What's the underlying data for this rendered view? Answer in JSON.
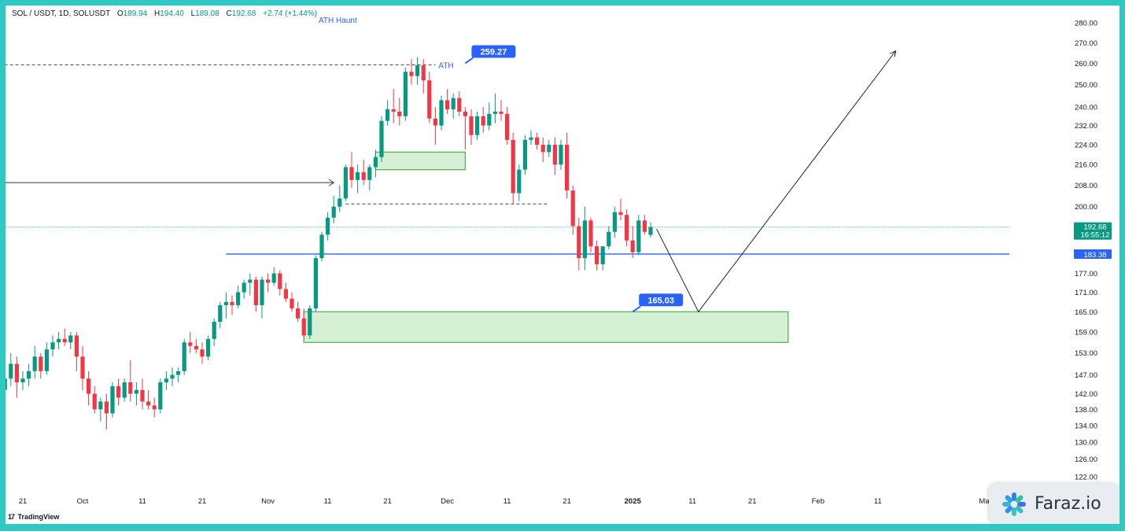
{
  "header": {
    "symbol": "SOL / USDT, 1D, SOLUSDT",
    "open_label": "O",
    "open": "189.94",
    "high_label": "H",
    "high": "194.40",
    "low_label": "L",
    "low": "189.08",
    "close_label": "C",
    "close": "192.68",
    "change": "+2.74 (+1.44%)"
  },
  "annotations": {
    "ath_haunt": "ATH Haunt",
    "ath": "ATH",
    "callout_high": "259.27",
    "callout_low": "165.03"
  },
  "price_tags": {
    "current": "192.68",
    "countdown": "16:55:12",
    "level": "183.38"
  },
  "branding": {
    "tradingview": "TradingView",
    "watermark": "Faraz.io"
  },
  "colors": {
    "up": "#089981",
    "down": "#f23645",
    "level_line": "#2962ff",
    "zone_fill": "#d6f0d6",
    "zone_border": "#4caf50",
    "callout": "#2962ff",
    "border": "#2fc9c4"
  },
  "chart_data": {
    "type": "candlestick",
    "symbol": "SOL / USDT",
    "interval": "1D",
    "y_scale": "log",
    "ylim": [
      119,
      288
    ],
    "y_ticks": [
      280,
      270,
      260,
      250,
      240,
      232,
      224,
      216,
      208,
      200,
      177,
      171,
      165,
      159,
      153,
      147,
      142,
      138,
      134,
      130,
      126,
      122
    ],
    "y_tick_labels": [
      "280.00",
      "270.00",
      "260.00",
      "250.00",
      "240.00",
      "232.00",
      "224.00",
      "216.00",
      "208.00",
      "200.00",
      "177.00",
      "171.00",
      "165.00",
      "159.00",
      "153.00",
      "147.00",
      "142.00",
      "138.00",
      "134.00",
      "130.00",
      "126.00",
      "122.00"
    ],
    "x_axis": {
      "start_date": "2024-09-17",
      "end_date": "2025-03-05",
      "ticks": [
        {
          "date": "2024-09-21",
          "label": "21"
        },
        {
          "date": "2024-10-01",
          "label": "Oct"
        },
        {
          "date": "2024-10-11",
          "label": "11"
        },
        {
          "date": "2024-10-21",
          "label": "21"
        },
        {
          "date": "2024-11-01",
          "label": "Nov"
        },
        {
          "date": "2024-11-11",
          "label": "11"
        },
        {
          "date": "2024-11-21",
          "label": "21"
        },
        {
          "date": "2024-12-01",
          "label": "Dec"
        },
        {
          "date": "2024-12-11",
          "label": "11"
        },
        {
          "date": "2024-12-21",
          "label": "21"
        },
        {
          "date": "2025-01-01",
          "label": "2025"
        },
        {
          "date": "2025-01-11",
          "label": "11"
        },
        {
          "date": "2025-01-21",
          "label": "21"
        },
        {
          "date": "2025-02-01",
          "label": "Feb"
        },
        {
          "date": "2025-02-11",
          "label": "11"
        },
        {
          "date": "2025-03-01",
          "label": "Mar"
        }
      ]
    },
    "candles": [
      {
        "date": "2024-09-17",
        "o": 131,
        "h": 144,
        "l": 128,
        "c": 143
      },
      {
        "date": "2024-09-18",
        "o": 143,
        "h": 148,
        "l": 140,
        "c": 146
      },
      {
        "date": "2024-09-19",
        "o": 146,
        "h": 153,
        "l": 144,
        "c": 150
      },
      {
        "date": "2024-09-20",
        "o": 150,
        "h": 152,
        "l": 141,
        "c": 145
      },
      {
        "date": "2024-09-21",
        "o": 145,
        "h": 148,
        "l": 143,
        "c": 146
      },
      {
        "date": "2024-09-22",
        "o": 146,
        "h": 150,
        "l": 144,
        "c": 148
      },
      {
        "date": "2024-09-23",
        "o": 148,
        "h": 155,
        "l": 146,
        "c": 152
      },
      {
        "date": "2024-09-24",
        "o": 152,
        "h": 153,
        "l": 146,
        "c": 148
      },
      {
        "date": "2024-09-25",
        "o": 148,
        "h": 156,
        "l": 147,
        "c": 154
      },
      {
        "date": "2024-09-26",
        "o": 154,
        "h": 158,
        "l": 152,
        "c": 156
      },
      {
        "date": "2024-09-27",
        "o": 156,
        "h": 159,
        "l": 154,
        "c": 157
      },
      {
        "date": "2024-09-28",
        "o": 157,
        "h": 160,
        "l": 155,
        "c": 156
      },
      {
        "date": "2024-09-29",
        "o": 156,
        "h": 159,
        "l": 154,
        "c": 158
      },
      {
        "date": "2024-09-30",
        "o": 158,
        "h": 159,
        "l": 148,
        "c": 152
      },
      {
        "date": "2024-10-01",
        "o": 152,
        "h": 155,
        "l": 143,
        "c": 146
      },
      {
        "date": "2024-10-02",
        "o": 146,
        "h": 148,
        "l": 139,
        "c": 142
      },
      {
        "date": "2024-10-03",
        "o": 142,
        "h": 144,
        "l": 137,
        "c": 138
      },
      {
        "date": "2024-10-04",
        "o": 138,
        "h": 141,
        "l": 135,
        "c": 140
      },
      {
        "date": "2024-10-05",
        "o": 140,
        "h": 142,
        "l": 133,
        "c": 137
      },
      {
        "date": "2024-10-06",
        "o": 137,
        "h": 145,
        "l": 136,
        "c": 144
      },
      {
        "date": "2024-10-07",
        "o": 144,
        "h": 146,
        "l": 139,
        "c": 141
      },
      {
        "date": "2024-10-08",
        "o": 141,
        "h": 146,
        "l": 140,
        "c": 145
      },
      {
        "date": "2024-10-09",
        "o": 145,
        "h": 151,
        "l": 140,
        "c": 142
      },
      {
        "date": "2024-10-10",
        "o": 142,
        "h": 145,
        "l": 139,
        "c": 143
      },
      {
        "date": "2024-10-11",
        "o": 143,
        "h": 146,
        "l": 138,
        "c": 140
      },
      {
        "date": "2024-10-12",
        "o": 140,
        "h": 143,
        "l": 138,
        "c": 139
      },
      {
        "date": "2024-10-13",
        "o": 139,
        "h": 141,
        "l": 136,
        "c": 138
      },
      {
        "date": "2024-10-14",
        "o": 138,
        "h": 146,
        "l": 137,
        "c": 145
      },
      {
        "date": "2024-10-15",
        "o": 145,
        "h": 148,
        "l": 143,
        "c": 146
      },
      {
        "date": "2024-10-16",
        "o": 146,
        "h": 149,
        "l": 144,
        "c": 147
      },
      {
        "date": "2024-10-17",
        "o": 147,
        "h": 149,
        "l": 145,
        "c": 148
      },
      {
        "date": "2024-10-18",
        "o": 148,
        "h": 157,
        "l": 147,
        "c": 156
      },
      {
        "date": "2024-10-19",
        "o": 156,
        "h": 159,
        "l": 153,
        "c": 155
      },
      {
        "date": "2024-10-20",
        "o": 155,
        "h": 157,
        "l": 153,
        "c": 154
      },
      {
        "date": "2024-10-21",
        "o": 154,
        "h": 156,
        "l": 150,
        "c": 152
      },
      {
        "date": "2024-10-22",
        "o": 152,
        "h": 158,
        "l": 151,
        "c": 157
      },
      {
        "date": "2024-10-23",
        "o": 157,
        "h": 163,
        "l": 155,
        "c": 162
      },
      {
        "date": "2024-10-24",
        "o": 162,
        "h": 168,
        "l": 160,
        "c": 167
      },
      {
        "date": "2024-10-25",
        "o": 167,
        "h": 171,
        "l": 163,
        "c": 168
      },
      {
        "date": "2024-10-26",
        "o": 168,
        "h": 170,
        "l": 164,
        "c": 167
      },
      {
        "date": "2024-10-27",
        "o": 167,
        "h": 173,
        "l": 166,
        "c": 171
      },
      {
        "date": "2024-10-28",
        "o": 171,
        "h": 175,
        "l": 169,
        "c": 174
      },
      {
        "date": "2024-10-29",
        "o": 174,
        "h": 177,
        "l": 170,
        "c": 175
      },
      {
        "date": "2024-10-30",
        "o": 175,
        "h": 176,
        "l": 165,
        "c": 167
      },
      {
        "date": "2024-10-31",
        "o": 167,
        "h": 176,
        "l": 163,
        "c": 175
      },
      {
        "date": "2024-11-01",
        "o": 175,
        "h": 177,
        "l": 171,
        "c": 174
      },
      {
        "date": "2024-11-02",
        "o": 174,
        "h": 179,
        "l": 173,
        "c": 177
      },
      {
        "date": "2024-11-03",
        "o": 177,
        "h": 178,
        "l": 170,
        "c": 172
      },
      {
        "date": "2024-11-04",
        "o": 172,
        "h": 174,
        "l": 168,
        "c": 169
      },
      {
        "date": "2024-11-05",
        "o": 169,
        "h": 171,
        "l": 165,
        "c": 166
      },
      {
        "date": "2024-11-06",
        "o": 166,
        "h": 168,
        "l": 162,
        "c": 163
      },
      {
        "date": "2024-11-07",
        "o": 163,
        "h": 166,
        "l": 157,
        "c": 158
      },
      {
        "date": "2024-11-08",
        "o": 158,
        "h": 167,
        "l": 157,
        "c": 166
      },
      {
        "date": "2024-11-09",
        "o": 166,
        "h": 183,
        "l": 165,
        "c": 182
      },
      {
        "date": "2024-11-10",
        "o": 182,
        "h": 191,
        "l": 181,
        "c": 190
      },
      {
        "date": "2024-11-11",
        "o": 190,
        "h": 198,
        "l": 188,
        "c": 196
      },
      {
        "date": "2024-11-12",
        "o": 196,
        "h": 204,
        "l": 194,
        "c": 200
      },
      {
        "date": "2024-11-13",
        "o": 200,
        "h": 208,
        "l": 198,
        "c": 203
      },
      {
        "date": "2024-11-14",
        "o": 203,
        "h": 216,
        "l": 202,
        "c": 215
      },
      {
        "date": "2024-11-15",
        "o": 215,
        "h": 221,
        "l": 207,
        "c": 210
      },
      {
        "date": "2024-11-16",
        "o": 210,
        "h": 216,
        "l": 205,
        "c": 213
      },
      {
        "date": "2024-11-17",
        "o": 213,
        "h": 218,
        "l": 208,
        "c": 210
      },
      {
        "date": "2024-11-18",
        "o": 210,
        "h": 216,
        "l": 206,
        "c": 215
      },
      {
        "date": "2024-11-19",
        "o": 215,
        "h": 222,
        "l": 211,
        "c": 219
      },
      {
        "date": "2024-11-20",
        "o": 219,
        "h": 236,
        "l": 217,
        "c": 234
      },
      {
        "date": "2024-11-21",
        "o": 234,
        "h": 243,
        "l": 232,
        "c": 239
      },
      {
        "date": "2024-11-22",
        "o": 239,
        "h": 248,
        "l": 233,
        "c": 238
      },
      {
        "date": "2024-11-23",
        "o": 238,
        "h": 244,
        "l": 232,
        "c": 236
      },
      {
        "date": "2024-11-24",
        "o": 236,
        "h": 258,
        "l": 234,
        "c": 256
      },
      {
        "date": "2024-11-25",
        "o": 256,
        "h": 262,
        "l": 250,
        "c": 254
      },
      {
        "date": "2024-11-26",
        "o": 254,
        "h": 263,
        "l": 250,
        "c": 259
      },
      {
        "date": "2024-11-27",
        "o": 259,
        "h": 262,
        "l": 246,
        "c": 252
      },
      {
        "date": "2024-11-28",
        "o": 252,
        "h": 256,
        "l": 233,
        "c": 235
      },
      {
        "date": "2024-11-29",
        "o": 235,
        "h": 240,
        "l": 224,
        "c": 232
      },
      {
        "date": "2024-11-30",
        "o": 232,
        "h": 245,
        "l": 230,
        "c": 243
      },
      {
        "date": "2024-12-01",
        "o": 243,
        "h": 248,
        "l": 237,
        "c": 239
      },
      {
        "date": "2024-12-02",
        "o": 239,
        "h": 246,
        "l": 235,
        "c": 244
      },
      {
        "date": "2024-12-03",
        "o": 244,
        "h": 247,
        "l": 236,
        "c": 238
      },
      {
        "date": "2024-12-04",
        "o": 238,
        "h": 240,
        "l": 222,
        "c": 236
      },
      {
        "date": "2024-12-05",
        "o": 236,
        "h": 239,
        "l": 224,
        "c": 228
      },
      {
        "date": "2024-12-06",
        "o": 228,
        "h": 238,
        "l": 226,
        "c": 236
      },
      {
        "date": "2024-12-07",
        "o": 236,
        "h": 240,
        "l": 229,
        "c": 232
      },
      {
        "date": "2024-12-08",
        "o": 232,
        "h": 242,
        "l": 230,
        "c": 237
      },
      {
        "date": "2024-12-09",
        "o": 237,
        "h": 246,
        "l": 233,
        "c": 238
      },
      {
        "date": "2024-12-10",
        "o": 238,
        "h": 243,
        "l": 234,
        "c": 237
      },
      {
        "date": "2024-12-11",
        "o": 237,
        "h": 240,
        "l": 224,
        "c": 226
      },
      {
        "date": "2024-12-12",
        "o": 226,
        "h": 229,
        "l": 201,
        "c": 205
      },
      {
        "date": "2024-12-13",
        "o": 205,
        "h": 216,
        "l": 202,
        "c": 214
      },
      {
        "date": "2024-12-14",
        "o": 214,
        "h": 228,
        "l": 212,
        "c": 226
      },
      {
        "date": "2024-12-15",
        "o": 226,
        "h": 230,
        "l": 224,
        "c": 227
      },
      {
        "date": "2024-12-16",
        "o": 227,
        "h": 229,
        "l": 222,
        "c": 224
      },
      {
        "date": "2024-12-17",
        "o": 224,
        "h": 227,
        "l": 217,
        "c": 221
      },
      {
        "date": "2024-12-18",
        "o": 221,
        "h": 226,
        "l": 219,
        "c": 224
      },
      {
        "date": "2024-12-19",
        "o": 224,
        "h": 227,
        "l": 212,
        "c": 216
      },
      {
        "date": "2024-12-20",
        "o": 216,
        "h": 226,
        "l": 214,
        "c": 224
      },
      {
        "date": "2024-12-21",
        "o": 224,
        "h": 229,
        "l": 203,
        "c": 206
      },
      {
        "date": "2024-12-22",
        "o": 206,
        "h": 208,
        "l": 190,
        "c": 193
      },
      {
        "date": "2024-12-23",
        "o": 193,
        "h": 196,
        "l": 178,
        "c": 182
      },
      {
        "date": "2024-12-24",
        "o": 182,
        "h": 200,
        "l": 178,
        "c": 195
      },
      {
        "date": "2024-12-25",
        "o": 195,
        "h": 196,
        "l": 184,
        "c": 186
      },
      {
        "date": "2024-12-26",
        "o": 186,
        "h": 188,
        "l": 178,
        "c": 180
      },
      {
        "date": "2024-12-27",
        "o": 180,
        "h": 186,
        "l": 178,
        "c": 186
      },
      {
        "date": "2024-12-28",
        "o": 186,
        "h": 193,
        "l": 185,
        "c": 191
      },
      {
        "date": "2024-12-29",
        "o": 191,
        "h": 200,
        "l": 189,
        "c": 198
      },
      {
        "date": "2024-12-30",
        "o": 198,
        "h": 203,
        "l": 195,
        "c": 197
      },
      {
        "date": "2024-12-31",
        "o": 197,
        "h": 199,
        "l": 186,
        "c": 188
      },
      {
        "date": "2025-01-01",
        "o": 188,
        "h": 193,
        "l": 182,
        "c": 184
      },
      {
        "date": "2025-01-02",
        "o": 184,
        "h": 197,
        "l": 183,
        "c": 195
      },
      {
        "date": "2025-01-03",
        "o": 195,
        "h": 197,
        "l": 190,
        "c": 191
      },
      {
        "date": "2025-01-04",
        "o": 189.94,
        "h": 194.4,
        "l": 189.08,
        "c": 192.68
      }
    ],
    "horizontal_lines": [
      {
        "price": 259.27,
        "style": "dashed",
        "from": "2024-09-17",
        "to": "2024-11-29",
        "label": "ATH"
      },
      {
        "price": 209,
        "style": "solid",
        "arrow": true,
        "from": "2024-09-17",
        "to": "2024-11-12"
      },
      {
        "price": 201,
        "style": "dashed",
        "from": "2024-11-14",
        "to": "2024-12-18"
      },
      {
        "price": 183.38,
        "style": "solid",
        "from": "2024-10-25",
        "to": "2025-03-05"
      },
      {
        "price": 192.68,
        "style": "dotted",
        "from": "2024-09-17",
        "to": "2025-03-05"
      }
    ],
    "zones": [
      {
        "from": "2024-11-19",
        "to": "2024-12-04",
        "top": 221,
        "bottom": 214
      },
      {
        "from": "2024-11-07",
        "to": "2025-01-27",
        "top": 165,
        "bottom": 156
      }
    ],
    "projection": [
      {
        "date": "2025-01-05",
        "price": 192
      },
      {
        "date": "2025-01-12",
        "price": 165
      },
      {
        "date": "2025-02-14",
        "price": 266
      }
    ],
    "callouts": [
      {
        "text": "259.27",
        "date": "2024-12-04",
        "price": 260
      },
      {
        "text": "165.03",
        "date": "2025-01-01",
        "price": 165
      }
    ]
  }
}
